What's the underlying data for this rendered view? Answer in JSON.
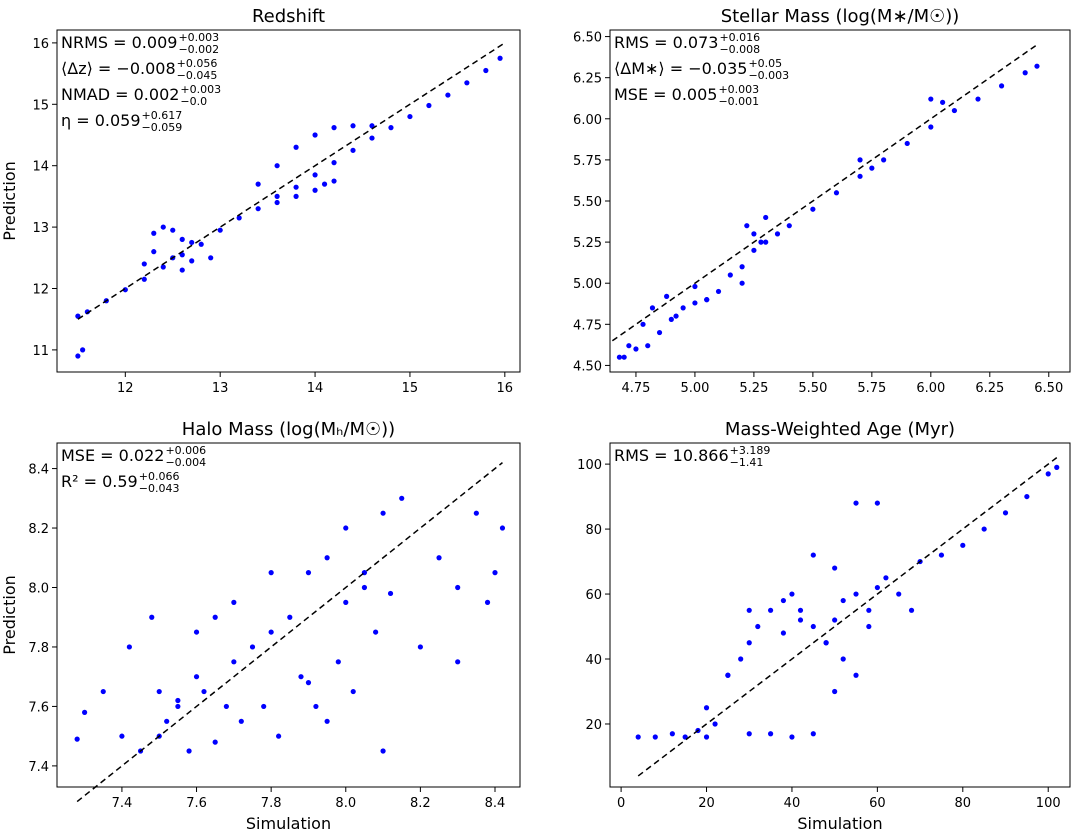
{
  "chart_data": [
    {
      "type": "scatter",
      "title": "Redshift",
      "y_label": "Prediction",
      "color": "#0000ff",
      "xlim": [
        11.28,
        16.16
      ],
      "ylim": [
        10.64,
        16.21
      ],
      "xticks": [
        12,
        13,
        14,
        15,
        16
      ],
      "yticks": [
        11,
        12,
        13,
        14,
        15,
        16
      ],
      "identity_line": [
        11.5,
        16
      ],
      "annotations": [
        {
          "text": "NRMS = 0.009",
          "sup": "+0.003",
          "sub": "−0.002"
        },
        {
          "text": "⟨Δz⟩ = −0.008",
          "sup": "+0.056",
          "sub": "−0.045"
        },
        {
          "text": "NMAD = 0.002",
          "sup": "+0.003",
          "sub": "−0.0"
        },
        {
          "text": "η = 0.059",
          "sup": "+0.617",
          "sub": "−0.059"
        }
      ],
      "x": [
        11.5,
        11.6,
        11.8,
        12.0,
        12.2,
        12.4,
        12.6,
        12.8,
        13.0,
        13.2,
        13.4,
        13.6,
        13.8,
        14.0,
        14.2,
        14.4,
        14.6,
        14.8,
        15.0,
        15.2,
        15.4,
        15.6,
        15.8,
        15.95,
        11.5,
        11.55,
        12.3,
        12.4,
        12.5,
        12.6,
        12.7,
        12.3,
        12.5,
        12.7,
        12.9,
        13.4,
        13.6,
        13.8,
        14.0,
        14.2,
        14.4,
        14.6,
        13.6,
        13.8,
        14.0,
        14.1,
        14.2,
        12.2,
        12.6
      ],
      "values": [
        11.55,
        11.62,
        11.8,
        11.98,
        12.15,
        12.35,
        12.55,
        12.72,
        12.95,
        13.15,
        13.3,
        13.5,
        13.65,
        13.85,
        14.05,
        14.25,
        14.45,
        14.62,
        14.8,
        14.98,
        15.15,
        15.35,
        15.55,
        15.75,
        10.9,
        11.0,
        12.9,
        13.0,
        12.95,
        12.8,
        12.75,
        12.6,
        12.5,
        12.45,
        12.5,
        13.7,
        14.0,
        14.3,
        14.5,
        14.62,
        14.65,
        14.65,
        13.4,
        13.5,
        13.6,
        13.7,
        13.75,
        12.4,
        12.3
      ]
    },
    {
      "type": "scatter",
      "title": "Stellar Mass (log(M∗/M☉))",
      "color": "#0000ff",
      "xlim": [
        4.64,
        6.59
      ],
      "ylim": [
        4.46,
        6.54
      ],
      "xticks": [
        4.75,
        {
          "value": 5.0,
          "label": "5.00"
        },
        5.25,
        {
          "value": 5.5,
          "label": "5.50"
        },
        5.75,
        {
          "value": 6.0,
          "label": "6.00"
        },
        6.25,
        {
          "value": 6.5,
          "label": "6.50"
        }
      ],
      "yticks": [
        {
          "value": 4.5,
          "label": "4.50"
        },
        4.75,
        {
          "value": 5.0,
          "label": "5.00"
        },
        5.25,
        {
          "value": 5.5,
          "label": "5.50"
        },
        5.75,
        {
          "value": 6.0,
          "label": "6.00"
        },
        6.25,
        {
          "value": 6.5,
          "label": "6.50"
        }
      ],
      "identity_line": [
        4.65,
        6.45
      ],
      "annotations": [
        {
          "text": "RMS = 0.073",
          "sup": "+0.016",
          "sub": "−0.008"
        },
        {
          "text": "⟨ΔM∗⟩ = −0.035",
          "sup": "+0.05",
          "sub": "−0.003"
        },
        {
          "text": "MSE = 0.005",
          "sup": "+0.003",
          "sub": "−0.001"
        }
      ],
      "x": [
        4.7,
        4.75,
        4.8,
        4.85,
        4.9,
        4.95,
        5.0,
        5.05,
        5.1,
        5.15,
        5.2,
        5.25,
        5.3,
        5.35,
        5.4,
        5.5,
        5.6,
        5.7,
        5.8,
        5.9,
        6.0,
        6.1,
        6.2,
        6.3,
        6.4,
        6.45,
        4.68,
        4.72,
        4.78,
        4.82,
        4.88,
        4.92,
        5.22,
        5.25,
        5.28,
        5.0,
        5.05,
        5.2,
        5.3,
        6.0,
        6.05,
        5.7,
        5.75
      ],
      "values": [
        4.55,
        4.6,
        4.62,
        4.7,
        4.78,
        4.85,
        4.88,
        4.9,
        4.95,
        5.05,
        5.1,
        5.2,
        5.25,
        5.3,
        5.35,
        5.45,
        5.55,
        5.65,
        5.75,
        5.85,
        5.95,
        6.05,
        6.12,
        6.2,
        6.28,
        6.32,
        4.55,
        4.62,
        4.75,
        4.85,
        4.92,
        4.8,
        5.35,
        5.3,
        5.25,
        4.98,
        4.9,
        5.0,
        5.4,
        6.12,
        6.1,
        5.75,
        5.7
      ]
    },
    {
      "type": "scatter",
      "title": "Halo Mass (log(Mₕ/M☉))",
      "x_label": "Simulation",
      "y_label": "Prediction",
      "color": "#0000ff",
      "xlim": [
        7.226,
        8.467
      ],
      "ylim": [
        7.329,
        8.486
      ],
      "xticks": [
        7.4,
        7.6,
        7.8,
        {
          "value": 8.0,
          "label": "8.0"
        },
        8.2,
        8.4
      ],
      "yticks": [
        7.4,
        7.6,
        7.8,
        {
          "value": 8.0,
          "label": "8.0"
        },
        8.2,
        8.4
      ],
      "identity_line": [
        7.28,
        8.42
      ],
      "annotations": [
        {
          "text": "MSE = 0.022",
          "sup": "+0.006",
          "sub": "−0.004"
        },
        {
          "text": "R² = 0.59",
          "sup": "+0.066",
          "sub": "−0.043"
        }
      ],
      "x": [
        7.28,
        7.3,
        7.35,
        7.4,
        7.42,
        7.45,
        7.48,
        7.5,
        7.52,
        7.55,
        7.58,
        7.6,
        7.62,
        7.65,
        7.68,
        7.7,
        7.72,
        7.75,
        7.78,
        7.8,
        7.82,
        7.85,
        7.88,
        7.9,
        7.92,
        7.95,
        7.98,
        8.0,
        8.02,
        8.05,
        8.08,
        8.1,
        8.12,
        8.15,
        8.2,
        8.25,
        8.3,
        8.35,
        8.4,
        8.42,
        7.5,
        7.6,
        7.7,
        7.55,
        7.65,
        7.8,
        7.9,
        8.0,
        8.1,
        7.95,
        8.05,
        8.3,
        8.38
      ],
      "values": [
        7.49,
        7.58,
        7.65,
        7.5,
        7.8,
        7.45,
        7.9,
        7.5,
        7.55,
        7.62,
        7.45,
        7.7,
        7.65,
        7.48,
        7.6,
        7.75,
        7.55,
        7.8,
        7.6,
        7.85,
        7.5,
        7.9,
        7.7,
        8.05,
        7.6,
        8.1,
        7.75,
        8.2,
        7.65,
        8.0,
        7.85,
        8.25,
        7.98,
        8.3,
        7.8,
        8.1,
        7.75,
        8.25,
        8.05,
        8.2,
        7.65,
        7.85,
        7.95,
        7.6,
        7.9,
        8.05,
        7.68,
        7.95,
        7.45,
        7.55,
        8.05,
        8.0,
        7.95
      ]
    },
    {
      "type": "scatter",
      "title": "Mass-Weighted Age (Myr)",
      "x_label": "Simulation",
      "color": "#0000ff",
      "xlim": [
        -2.6,
        105.1
      ],
      "ylim": [
        0.6,
        106.5
      ],
      "xticks": [
        0,
        20,
        40,
        60,
        80,
        100
      ],
      "yticks": [
        20,
        40,
        60,
        80,
        100
      ],
      "identity_line": [
        4,
        102
      ],
      "annotations": [
        {
          "text": "RMS = 10.866",
          "sup": "+3.189",
          "sub": "−1.41"
        }
      ],
      "x": [
        4,
        8,
        12,
        15,
        18,
        20,
        22,
        25,
        28,
        30,
        32,
        35,
        38,
        40,
        42,
        45,
        48,
        50,
        52,
        55,
        58,
        60,
        62,
        65,
        68,
        70,
        75,
        80,
        85,
        90,
        95,
        100,
        102,
        30,
        35,
        40,
        45,
        50,
        55,
        38,
        42,
        48,
        52,
        58,
        20,
        25,
        30,
        55,
        60,
        45,
        50
      ],
      "values": [
        16,
        16,
        17,
        16,
        18,
        16,
        20,
        35,
        40,
        45,
        50,
        55,
        58,
        60,
        55,
        50,
        45,
        52,
        58,
        60,
        55,
        62,
        65,
        60,
        55,
        70,
        72,
        75,
        80,
        85,
        90,
        97,
        99,
        17,
        17,
        16,
        17,
        30,
        35,
        48,
        52,
        45,
        40,
        50,
        25,
        35,
        55,
        88,
        88,
        72,
        68
      ]
    }
  ]
}
